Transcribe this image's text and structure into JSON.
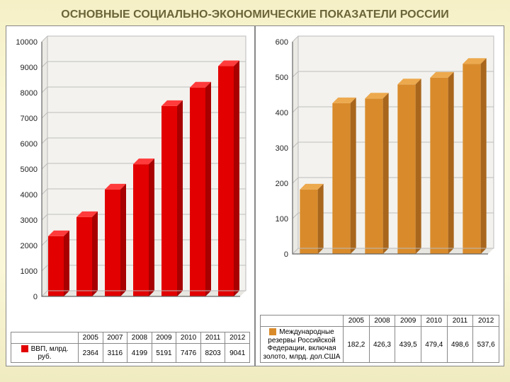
{
  "title": "ОСНОВНЫЕ СОЦИАЛЬНО-ЭКОНОМИЧЕСКИЕ ПОКАЗАТЕЛИ РОССИИ",
  "title_color": "#6b6438",
  "title_fontsize": 16,
  "background_gradient": [
    "#f5f0c6",
    "#faf7d8",
    "#f0ebc0"
  ],
  "chart1": {
    "type": "bar-3d",
    "categories": [
      "2005",
      "2007",
      "2008",
      "2009",
      "2010",
      "2011",
      "2012"
    ],
    "values": [
      2364,
      3116,
      4199,
      5191,
      7476,
      8203,
      9041
    ],
    "series_label": "ВВП, млрд. руб.",
    "bar_color": "#e20000",
    "bar_top_color": "#ff3b3b",
    "bar_side_color": "#a80000",
    "bar_width": 0.55,
    "depth": 8,
    "ylim": [
      0,
      10000
    ],
    "ytick_step": 1000,
    "plot_bg": "#f3f2ee",
    "grid_color": "#bdbdbd",
    "axis_color": "#666666",
    "label_fontsize": 11,
    "tick_fontsize": 11,
    "table_fontsize": 10,
    "swatch_color": "#e20000"
  },
  "chart2": {
    "type": "bar-3d",
    "categories": [
      "2005",
      "2008",
      "2009",
      "2010",
      "2011",
      "2012"
    ],
    "values": [
      182.2,
      426.3,
      439.5,
      479.4,
      498.6,
      537.6
    ],
    "series_label": "Международные резервы Российской Федерации, включая золото, млрд. дол.США",
    "bar_color": "#d98b2b",
    "bar_top_color": "#eda94e",
    "bar_side_color": "#a8661c",
    "bar_width": 0.55,
    "depth": 8,
    "ylim": [
      0,
      600
    ],
    "ytick_step": 100,
    "plot_bg": "#f3f2ee",
    "grid_color": "#bdbdbd",
    "axis_color": "#666666",
    "label_fontsize": 11,
    "tick_fontsize": 11,
    "table_fontsize": 10,
    "swatch_color": "#d98b2b"
  }
}
